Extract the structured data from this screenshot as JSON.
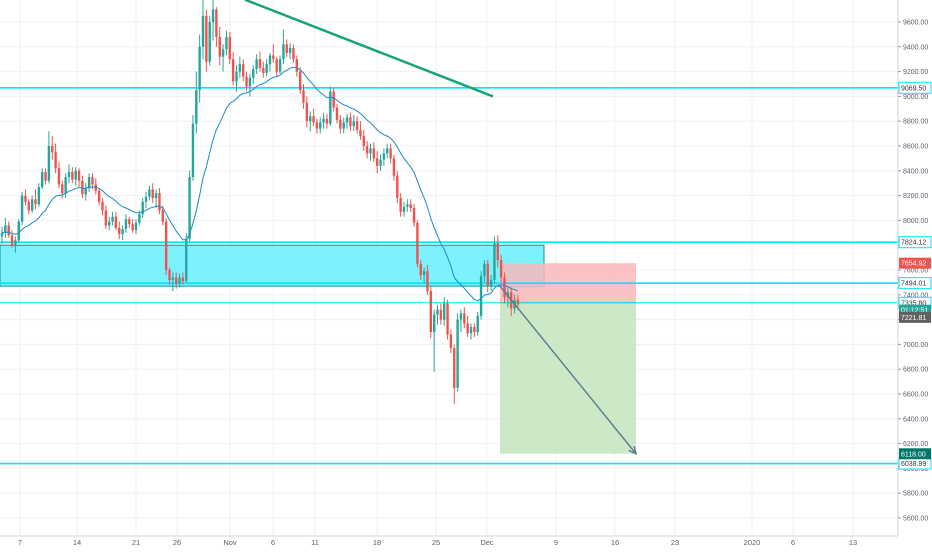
{
  "chart_data": {
    "type": "candlestick",
    "ylim": [
      5550,
      9780
    ],
    "y_ticks": [
      {
        "value": 5600,
        "label": "5600.00"
      },
      {
        "value": 5800,
        "label": "5800.00"
      },
      {
        "value": 6000,
        "label": "6000.00"
      },
      {
        "value": 6200,
        "label": "6200.00"
      },
      {
        "value": 6400,
        "label": "6400.00"
      },
      {
        "value": 6600,
        "label": "6600.00"
      },
      {
        "value": 6800,
        "label": "6800.00"
      },
      {
        "value": 7000,
        "label": "7000.00"
      },
      {
        "value": 7200,
        "label": "7200.00"
      },
      {
        "value": 7400,
        "label": "7400.00"
      },
      {
        "value": 7600,
        "label": "7600.00"
      },
      {
        "value": 7800,
        "label": "7800.00"
      },
      {
        "value": 8000,
        "label": "8000.00"
      },
      {
        "value": 8200,
        "label": "8200.00"
      },
      {
        "value": 8400,
        "label": "8400.00"
      },
      {
        "value": 8600,
        "label": "8600.00"
      },
      {
        "value": 8800,
        "label": "8800.00"
      },
      {
        "value": 9000,
        "label": "9000.00"
      },
      {
        "value": 9200,
        "label": "9200.00"
      },
      {
        "value": 9400,
        "label": "9400.00"
      },
      {
        "value": 9600,
        "label": "9600.00"
      }
    ],
    "x_ticks": [
      {
        "label": "7",
        "x": 20
      },
      {
        "label": "14",
        "x": 77
      },
      {
        "label": "21",
        "x": 136
      },
      {
        "label": "26",
        "x": 177
      },
      {
        "label": "Nov",
        "x": 230
      },
      {
        "label": "6",
        "x": 273
      },
      {
        "label": "11",
        "x": 315
      },
      {
        "label": "18",
        "x": 377
      },
      {
        "label": "25",
        "x": 436
      },
      {
        "label": "Dec",
        "x": 487
      },
      {
        "label": "9",
        "x": 556
      },
      {
        "label": "16",
        "x": 615
      },
      {
        "label": "23",
        "x": 675
      },
      {
        "label": "2020",
        "x": 752
      },
      {
        "label": "6",
        "x": 793
      },
      {
        "label": "13",
        "x": 853
      }
    ],
    "candles": [
      [
        7870,
        7950,
        7810,
        7900
      ],
      [
        7900,
        8020,
        7860,
        7960
      ],
      [
        7960,
        7990,
        7860,
        7880
      ],
      [
        7880,
        7920,
        7780,
        7800
      ],
      [
        7800,
        7870,
        7740,
        7840
      ],
      [
        7840,
        8010,
        7820,
        7990
      ],
      [
        7990,
        8230,
        7960,
        8200
      ],
      [
        8200,
        8250,
        8120,
        8150
      ],
      [
        8150,
        8170,
        8050,
        8080
      ],
      [
        8080,
        8200,
        8060,
        8170
      ],
      [
        8170,
        8250,
        8090,
        8130
      ],
      [
        8130,
        8300,
        8110,
        8270
      ],
      [
        8270,
        8420,
        8250,
        8390
      ],
      [
        8390,
        8420,
        8290,
        8320
      ],
      [
        8320,
        8720,
        8300,
        8600
      ],
      [
        8600,
        8680,
        8490,
        8550
      ],
      [
        8550,
        8620,
        8380,
        8420
      ],
      [
        8420,
        8470,
        8260,
        8290
      ],
      [
        8290,
        8320,
        8180,
        8220
      ],
      [
        8220,
        8380,
        8180,
        8350
      ],
      [
        8350,
        8450,
        8300,
        8390
      ],
      [
        8390,
        8430,
        8300,
        8330
      ],
      [
        8330,
        8430,
        8280,
        8400
      ],
      [
        8400,
        8420,
        8270,
        8320
      ],
      [
        8320,
        8360,
        8180,
        8210
      ],
      [
        8210,
        8300,
        8160,
        8260
      ],
      [
        8260,
        8380,
        8230,
        8350
      ],
      [
        8350,
        8380,
        8250,
        8290
      ],
      [
        8290,
        8340,
        8210,
        8240
      ],
      [
        8240,
        8260,
        8120,
        8150
      ],
      [
        8150,
        8180,
        8040,
        8080
      ],
      [
        8080,
        8120,
        7930,
        7960
      ],
      [
        7960,
        8030,
        7920,
        7990
      ],
      [
        7990,
        8070,
        7960,
        8030
      ],
      [
        8030,
        8070,
        7920,
        7940
      ],
      [
        7940,
        7990,
        7850,
        7890
      ],
      [
        7890,
        7960,
        7840,
        7930
      ],
      [
        7930,
        8050,
        7900,
        8010
      ],
      [
        8010,
        8030,
        7940,
        7970
      ],
      [
        7970,
        8010,
        7900,
        7920
      ],
      [
        7920,
        8010,
        7890,
        7980
      ],
      [
        7980,
        8080,
        7960,
        8050
      ],
      [
        8050,
        8180,
        8020,
        8150
      ],
      [
        8150,
        8230,
        8100,
        8190
      ],
      [
        8190,
        8280,
        8160,
        8250
      ],
      [
        8250,
        8300,
        8140,
        8180
      ],
      [
        8180,
        8250,
        8100,
        8220
      ],
      [
        8220,
        8260,
        8050,
        8080
      ],
      [
        8080,
        8120,
        7960,
        7990
      ],
      [
        7990,
        8020,
        7560,
        7600
      ],
      [
        7600,
        7620,
        7480,
        7520
      ],
      [
        7520,
        7580,
        7430,
        7540
      ],
      [
        7540,
        7580,
        7450,
        7490
      ],
      [
        7490,
        7570,
        7460,
        7540
      ],
      [
        7540,
        7580,
        7480,
        7510
      ],
      [
        7510,
        7900,
        7500,
        7850
      ],
      [
        7850,
        8400,
        7830,
        8350
      ],
      [
        8350,
        8850,
        8320,
        8780
      ],
      [
        8780,
        9200,
        8700,
        9050
      ],
      [
        9050,
        9500,
        8950,
        9400
      ],
      [
        9400,
        9800,
        9300,
        9650
      ],
      [
        9650,
        9700,
        9200,
        9280
      ],
      [
        9280,
        9650,
        9250,
        9600
      ],
      [
        9600,
        9780,
        9450,
        9700
      ],
      [
        9700,
        9720,
        9400,
        9480
      ],
      [
        9480,
        9560,
        9250,
        9320
      ],
      [
        9320,
        9420,
        9200,
        9380
      ],
      [
        9380,
        9530,
        9330,
        9480
      ],
      [
        9480,
        9520,
        9260,
        9300
      ],
      [
        9300,
        9360,
        9090,
        9120
      ],
      [
        9120,
        9250,
        9040,
        9200
      ],
      [
        9200,
        9320,
        9150,
        9260
      ],
      [
        9260,
        9300,
        9120,
        9160
      ],
      [
        9160,
        9200,
        9040,
        9080
      ],
      [
        9080,
        9180,
        9000,
        9150
      ],
      [
        9150,
        9250,
        9100,
        9220
      ],
      [
        9220,
        9340,
        9180,
        9300
      ],
      [
        9300,
        9360,
        9200,
        9230
      ],
      [
        9230,
        9280,
        9150,
        9190
      ],
      [
        9190,
        9300,
        9160,
        9260
      ],
      [
        9260,
        9350,
        9200,
        9330
      ],
      [
        9330,
        9420,
        9270,
        9300
      ],
      [
        9300,
        9320,
        9160,
        9200
      ],
      [
        9200,
        9330,
        9180,
        9300
      ],
      [
        9300,
        9540,
        9260,
        9420
      ],
      [
        9420,
        9460,
        9320,
        9350
      ],
      [
        9350,
        9430,
        9300,
        9390
      ],
      [
        9390,
        9420,
        9270,
        9300
      ],
      [
        9300,
        9330,
        9160,
        9200
      ],
      [
        9200,
        9240,
        9020,
        9050
      ],
      [
        9050,
        9100,
        8900,
        8950
      ],
      [
        8950,
        9000,
        8750,
        8800
      ],
      [
        8800,
        8880,
        8720,
        8840
      ],
      [
        8840,
        8900,
        8760,
        8790
      ],
      [
        8790,
        8820,
        8700,
        8740
      ],
      [
        8740,
        8830,
        8700,
        8790
      ],
      [
        8790,
        8870,
        8740,
        8820
      ],
      [
        8820,
        8860,
        8740,
        8780
      ],
      [
        8780,
        9080,
        8760,
        9040
      ],
      [
        9040,
        9070,
        8880,
        8910
      ],
      [
        8910,
        8940,
        8780,
        8810
      ],
      [
        8810,
        8850,
        8700,
        8740
      ],
      [
        8740,
        8830,
        8700,
        8790
      ],
      [
        8790,
        8860,
        8740,
        8830
      ],
      [
        8830,
        8870,
        8720,
        8760
      ],
      [
        8760,
        8850,
        8720,
        8800
      ],
      [
        8800,
        8840,
        8700,
        8730
      ],
      [
        8730,
        8800,
        8650,
        8680
      ],
      [
        8680,
        8730,
        8560,
        8600
      ],
      [
        8600,
        8640,
        8500,
        8540
      ],
      [
        8540,
        8620,
        8480,
        8580
      ],
      [
        8580,
        8630,
        8470,
        8500
      ],
      [
        8500,
        8560,
        8380,
        8440
      ],
      [
        8440,
        8530,
        8400,
        8490
      ],
      [
        8490,
        8580,
        8440,
        8540
      ],
      [
        8540,
        8620,
        8500,
        8580
      ],
      [
        8580,
        8620,
        8460,
        8500
      ],
      [
        8500,
        8530,
        8320,
        8360
      ],
      [
        8360,
        8400,
        8140,
        8180
      ],
      [
        8180,
        8220,
        8030,
        8070
      ],
      [
        8070,
        8150,
        8030,
        8110
      ],
      [
        8110,
        8170,
        8070,
        8130
      ],
      [
        8130,
        8170,
        8070,
        8100
      ],
      [
        8100,
        8130,
        7950,
        7980
      ],
      [
        7980,
        8000,
        7620,
        7650
      ],
      [
        7650,
        7680,
        7520,
        7560
      ],
      [
        7560,
        7620,
        7500,
        7590
      ],
      [
        7590,
        7640,
        7400,
        7430
      ],
      [
        7430,
        7470,
        7050,
        7100
      ],
      [
        7100,
        7280,
        6780,
        7240
      ],
      [
        7240,
        7320,
        7160,
        7280
      ],
      [
        7280,
        7330,
        7160,
        7200
      ],
      [
        7200,
        7380,
        7150,
        7330
      ],
      [
        7330,
        7360,
        7040,
        7080
      ],
      [
        7080,
        7120,
        6930,
        6970
      ],
      [
        6970,
        7000,
        6520,
        6650
      ],
      [
        6650,
        7250,
        6620,
        7200
      ],
      [
        7200,
        7280,
        7100,
        7250
      ],
      [
        7250,
        7300,
        7130,
        7170
      ],
      [
        7170,
        7230,
        7060,
        7090
      ],
      [
        7090,
        7170,
        7040,
        7140
      ],
      [
        7140,
        7170,
        7060,
        7100
      ],
      [
        7100,
        7260,
        7070,
        7230
      ],
      [
        7230,
        7590,
        7200,
        7550
      ],
      [
        7550,
        7680,
        7500,
        7650
      ],
      [
        7650,
        7680,
        7420,
        7470
      ],
      [
        7470,
        7560,
        7430,
        7520
      ],
      [
        7520,
        7870,
        7490,
        7820
      ],
      [
        7820,
        7880,
        7620,
        7680
      ],
      [
        7680,
        7720,
        7500,
        7540
      ],
      [
        7540,
        7580,
        7330,
        7380
      ],
      [
        7380,
        7460,
        7300,
        7420
      ],
      [
        7420,
        7460,
        7230,
        7290
      ],
      [
        7290,
        7400,
        7250,
        7360
      ],
      [
        7360,
        7400,
        7280,
        7322
      ]
    ],
    "horizontal_lines": [
      {
        "value": 9069.5,
        "label": "9069.50"
      },
      {
        "value": 7824.12,
        "label": "7824.12"
      },
      {
        "value": 7494.01,
        "label": "7494.01"
      },
      {
        "value": 7335.8,
        "label": "7335.80"
      },
      {
        "value": 6038.99,
        "label": "6038.99"
      }
    ],
    "zone": {
      "top": 7800,
      "bottom": 7470
    },
    "trendline": {
      "start": [
        245,
        9780
      ],
      "end": [
        493,
        9000
      ]
    },
    "position": {
      "entry": 7335.8,
      "stop": 7654.92,
      "target": 6118.0,
      "x_start": 500,
      "x_end": 636
    },
    "price_labels": [
      {
        "label": "7654.92",
        "value": 7654.92,
        "color": "#ef5350"
      },
      {
        "label": "01:12:51",
        "value": 7276,
        "color": "#26a69a"
      },
      {
        "label": "7221.81",
        "value": 7218,
        "color": "#616161"
      },
      {
        "label": "6118.00",
        "value": 6118.0,
        "color": "#00796b"
      }
    ],
    "colors": {
      "up": "#26a69a",
      "down": "#ef5350",
      "ma": "#1e88c8",
      "cyan": "#00e5ff",
      "zone_fill": "#66f0ff",
      "trend": "#17a37a",
      "risk": "#f8b8b8",
      "reward": "#c8e6c0",
      "arrow": "#5a7a90"
    }
  }
}
